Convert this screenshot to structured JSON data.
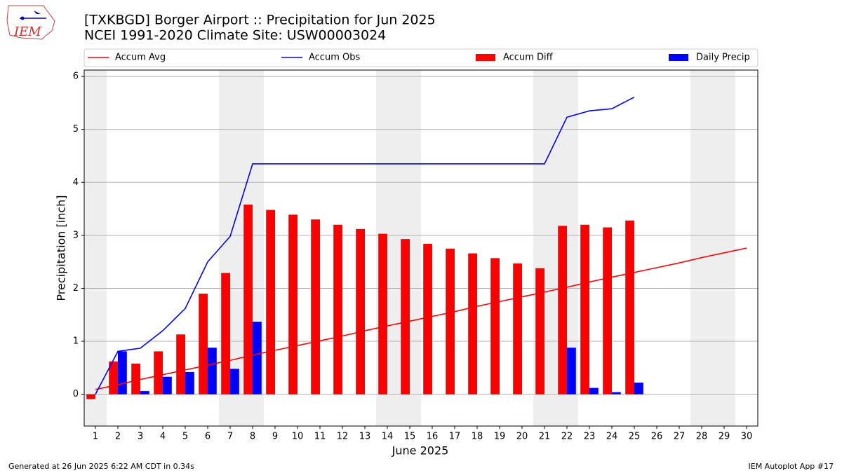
{
  "chart_data": {
    "type": "bar",
    "title": "[TXKBGD] Borger Airport :: Precipitation for Jun 2025",
    "subtitle": "NCEI 1991-2020 Climate Site: USW00003024",
    "logo_text": "IEM",
    "x_label": "June 2025",
    "y_label": "Precipitation [inch]",
    "footer_left": "Generated at 26 Jun 2025 6:22 AM CDT in 0.34s",
    "footer_right": "IEM Autoplot App #17",
    "x": [
      1,
      2,
      3,
      4,
      5,
      6,
      7,
      8,
      9,
      10,
      11,
      12,
      13,
      14,
      15,
      16,
      17,
      18,
      19,
      20,
      21,
      22,
      23,
      24,
      25,
      26,
      27,
      28,
      29,
      30
    ],
    "xlim": [
      0.5,
      30.5
    ],
    "xticks": [
      1,
      2,
      3,
      4,
      5,
      6,
      7,
      8,
      9,
      10,
      11,
      12,
      13,
      14,
      15,
      16,
      17,
      18,
      19,
      20,
      21,
      22,
      23,
      24,
      25,
      26,
      27,
      28,
      29,
      30
    ],
    "ylim": [
      -0.6,
      6.12
    ],
    "yticks": [
      0,
      1,
      2,
      3,
      4,
      5,
      6
    ],
    "grid": true,
    "shaded_days": [
      1,
      7,
      8,
      14,
      15,
      21,
      22,
      28,
      29
    ],
    "shade_color": "#eeeeee",
    "series": [
      {
        "name": "Accum Avg",
        "type": "line",
        "color": "#ff0000",
        "values": [
          0.09,
          0.18,
          0.28,
          0.37,
          0.46,
          0.55,
          0.64,
          0.74,
          0.83,
          0.92,
          1.01,
          1.1,
          1.2,
          1.29,
          1.38,
          1.47,
          1.56,
          1.66,
          1.75,
          1.84,
          1.93,
          2.02,
          2.12,
          2.21,
          2.3,
          2.39,
          2.48,
          2.58,
          2.67,
          2.76
        ]
      },
      {
        "name": "Accum Obs",
        "type": "line",
        "color": "#0000ff",
        "values": [
          0,
          0.81,
          0.87,
          1.2,
          1.62,
          2.5,
          2.98,
          4.35,
          4.35,
          4.35,
          4.35,
          4.35,
          4.35,
          4.35,
          4.35,
          4.35,
          4.35,
          4.35,
          4.35,
          4.35,
          4.35,
          5.23,
          5.35,
          5.39,
          5.61,
          null,
          null,
          null,
          null,
          null
        ]
      },
      {
        "name": "Accum Diff",
        "type": "bar",
        "color": "#ff0000",
        "offset": -0.2,
        "width": 0.4,
        "values": [
          -0.09,
          0.62,
          0.58,
          0.81,
          1.13,
          1.9,
          2.29,
          3.58,
          3.48,
          3.39,
          3.3,
          3.2,
          3.12,
          3.03,
          2.93,
          2.84,
          2.75,
          2.66,
          2.57,
          2.47,
          2.38,
          3.18,
          3.2,
          3.15,
          3.28,
          null,
          null,
          null,
          null,
          null
        ]
      },
      {
        "name": "Daily Precip",
        "type": "bar",
        "color": "#0000ff",
        "offset": 0.2,
        "width": 0.4,
        "values": [
          0,
          0.81,
          0.06,
          0.33,
          0.42,
          0.88,
          0.48,
          1.37,
          0,
          0,
          0,
          0,
          0,
          0,
          0,
          0,
          0,
          0,
          0,
          0,
          0,
          0.88,
          0.12,
          0.04,
          0.22,
          null,
          null,
          null,
          null,
          null
        ]
      }
    ]
  }
}
